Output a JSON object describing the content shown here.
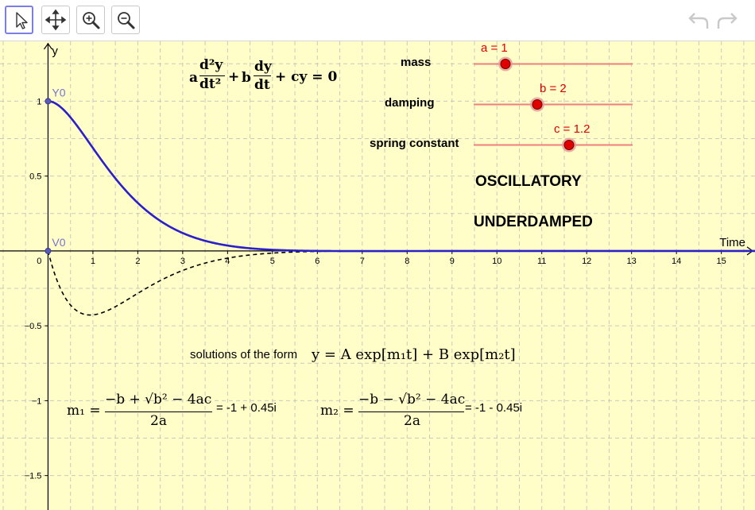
{
  "toolbar": {
    "tools": [
      "move",
      "move-graphics-view",
      "zoom-in",
      "zoom-out"
    ],
    "undo": "undo",
    "redo": "redo"
  },
  "equation": {
    "a": "a",
    "b": "b",
    "cy": "+ cy = 0",
    "plus": "+",
    "d2y": "d²y",
    "dt2": "dt²",
    "dy": "dy",
    "dt": "dt"
  },
  "sliders": [
    {
      "label": "mass",
      "value_text": "a = 1",
      "value": 1,
      "min": 0,
      "max": 5
    },
    {
      "label": "damping",
      "value_text": "b = 2",
      "value": 2,
      "min": 0,
      "max": 5
    },
    {
      "label": "spring constant",
      "value_text": "c = 1.2",
      "value": 1.2,
      "min": 0,
      "max": 2
    }
  ],
  "status": {
    "type": "OSCILLATORY",
    "damping": "UNDERDAMPED"
  },
  "solutions": {
    "intro": "solutions of the form",
    "form": "y = A exp[m₁t] + B exp[m₂t]",
    "m1_name": "m₁ =",
    "m2_name": "m₂ =",
    "m1_num": "−b + √b² − 4ac",
    "m2_num": "−b − √b² − 4ac",
    "den": "2a",
    "m1_value": "= -1 + 0.45i",
    "m2_value": "= -1 - 0.45i"
  },
  "graph": {
    "x_axis_label": "Time",
    "y_axis_label": "y",
    "x_ticks": [
      "1",
      "2",
      "3",
      "4",
      "5",
      "6",
      "7",
      "8",
      "9",
      "10",
      "11",
      "12",
      "13",
      "14",
      "15"
    ],
    "y_ticks": [
      "1",
      "0.5",
      "−0.5",
      "−1",
      "−1.5"
    ],
    "origin_label": "0",
    "points": [
      {
        "name": "Y0",
        "t": 0,
        "y": 1
      },
      {
        "name": "V0",
        "t": 0,
        "y": 0
      }
    ],
    "xlim": [
      -1.07,
      15.75
    ],
    "ylim": [
      -1.73,
      1.4
    ],
    "colors": {
      "solution": "#2a1fc8",
      "velocity": "#000000",
      "grid": "#b9b9b9",
      "slider": "#f08080",
      "thumb": "#e00000",
      "point_label": "#7676d2"
    }
  }
}
